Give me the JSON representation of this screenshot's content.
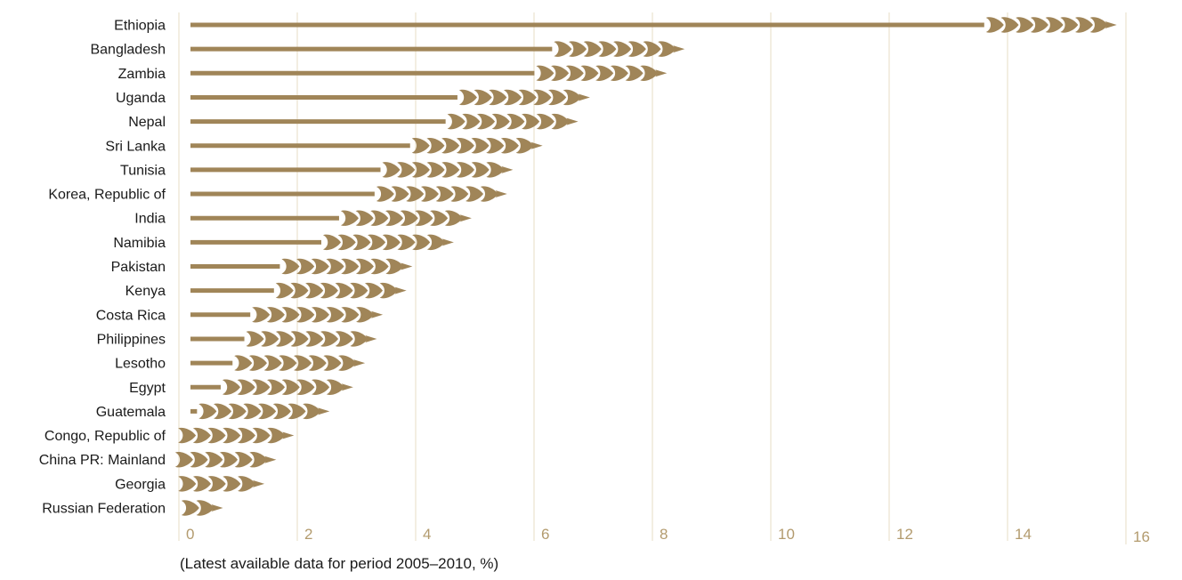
{
  "chart_data": {
    "type": "bar",
    "orientation": "horizontal",
    "categories": [
      "Ethiopia",
      "Bangladesh",
      "Zambia",
      "Uganda",
      "Nepal",
      "Sri Lanka",
      "Tunisia",
      "Korea, Republic of",
      "India",
      "Namibia",
      "Pakistan",
      "Kenya",
      "Costa Rica",
      "Philippines",
      "Lesotho",
      "Egypt",
      "Guatemala",
      "Congo, Republic of",
      "China PR: Mainland",
      "Georgia",
      "Russian Federation"
    ],
    "values": [
      15.8,
      8.5,
      8.2,
      6.9,
      6.7,
      6.1,
      5.6,
      5.5,
      4.9,
      4.6,
      3.9,
      3.8,
      3.4,
      3.3,
      3.1,
      2.9,
      2.5,
      1.9,
      1.6,
      1.4,
      0.7
    ],
    "xlim": [
      0,
      16
    ],
    "xticks": [
      "0",
      "2",
      "4",
      "6",
      "8",
      "10",
      "12",
      "14",
      "16"
    ],
    "caption": "(Latest available data for period 2005–2010, %)",
    "grid": "vertical",
    "colors": {
      "bar": "#a08558",
      "grid": "#ebe2cf",
      "tick": "#b39b6e"
    }
  }
}
